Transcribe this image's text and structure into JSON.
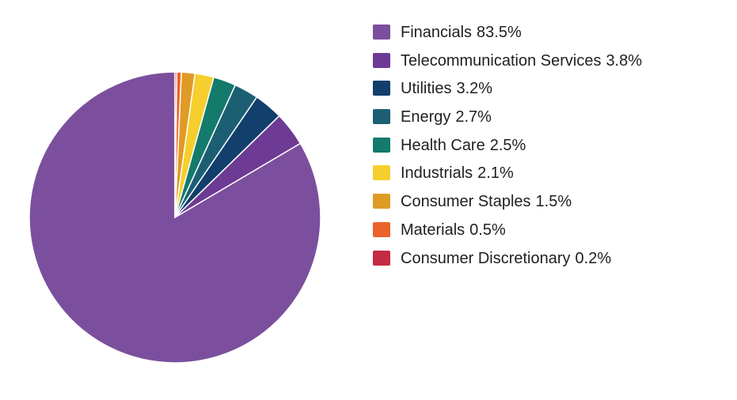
{
  "chart_data": {
    "type": "pie",
    "title": "",
    "start_angle": "12 o'clock",
    "direction": "counter-clockwise",
    "legend_position": "right",
    "slices": [
      {
        "label": "Financials",
        "value": 83.5,
        "value_label": "83.5%",
        "color": "#7b4f9d"
      },
      {
        "label": "Telecommunication Services",
        "value": 3.8,
        "value_label": "3.8%",
        "color": "#6d3a94"
      },
      {
        "label": "Utilities",
        "value": 3.2,
        "value_label": "3.2%",
        "color": "#123f6b"
      },
      {
        "label": "Energy",
        "value": 2.7,
        "value_label": "2.7%",
        "color": "#1c5f73"
      },
      {
        "label": "Health Care",
        "value": 2.5,
        "value_label": "2.5%",
        "color": "#137a6c"
      },
      {
        "label": "Industrials",
        "value": 2.1,
        "value_label": "2.1%",
        "color": "#f6cf2e"
      },
      {
        "label": "Consumer Staples",
        "value": 1.5,
        "value_label": "1.5%",
        "color": "#e09b26"
      },
      {
        "label": "Materials",
        "value": 0.5,
        "value_label": "0.5%",
        "color": "#e9632a"
      },
      {
        "label": "Consumer Discretionary",
        "value": 0.2,
        "value_label": "0.2%",
        "color": "#c42a45"
      }
    ]
  }
}
